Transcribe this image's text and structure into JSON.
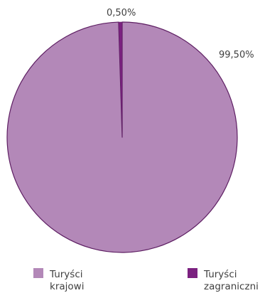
{
  "chart_data": {
    "type": "pie",
    "start_angle_deg": 0,
    "direction": "clockwise",
    "slices": [
      {
        "name": "Turyści krajowi",
        "value": 99.5,
        "label": "99,50%",
        "color": "#b388b8"
      },
      {
        "name": "Turyści zagraniczni",
        "value": 0.5,
        "label": "0,50%",
        "color": "#7b2180"
      }
    ],
    "outline_color": "#5e1f63",
    "legend": {
      "placement": "bottom",
      "items": [
        {
          "lines": [
            "Turyści",
            "krajowi"
          ],
          "color": "#b388b8"
        },
        {
          "lines": [
            "Turyści",
            "zagraniczni"
          ],
          "color": "#7b2180"
        }
      ]
    }
  }
}
